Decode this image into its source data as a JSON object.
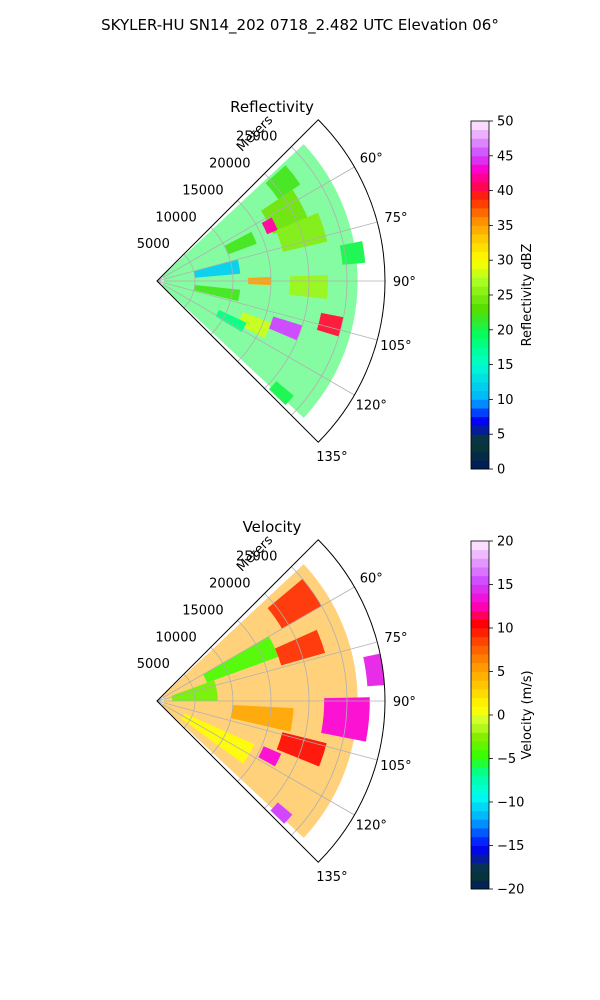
{
  "title": "SKYLER-HU  SN14_202  0718_2.482 UTC Elevation 06°",
  "chart_data": [
    {
      "type": "heatmap",
      "projection": "polar-sector",
      "title": "Reflectivity",
      "radial_axis_label": "Meters",
      "radial_ticks": [
        5000,
        10000,
        15000,
        20000,
        25000
      ],
      "radial_range": [
        0,
        30000
      ],
      "azimuth_range_deg": [
        45,
        135
      ],
      "azimuth_ticks_deg": [
        60,
        75,
        90,
        105,
        120,
        135
      ],
      "azimuth_tick_labels": [
        "60°",
        "75°",
        "90°",
        "105°",
        "120°",
        "135°"
      ],
      "grid": true,
      "colorbar": {
        "label": "Reflectivity dBZ",
        "range": [
          0,
          50
        ],
        "ticks": [
          0,
          5,
          10,
          15,
          20,
          25,
          30,
          35,
          40,
          45,
          50
        ],
        "tick_labels": [
          "0",
          "5",
          "10",
          "15",
          "20",
          "25",
          "30",
          "35",
          "40",
          "45",
          "50"
        ]
      },
      "background_value": 20,
      "cells": [
        {
          "az": 52,
          "r": 21000,
          "dr": 3500,
          "daz": 8,
          "v": 22
        },
        {
          "az": 62,
          "r": 19000,
          "dr": 5000,
          "daz": 12,
          "v": 24
        },
        {
          "az": 64,
          "r": 16500,
          "dr": 1500,
          "daz": 6,
          "v": 42
        },
        {
          "az": 66,
          "r": 12000,
          "dr": 4000,
          "daz": 7,
          "v": 22
        },
        {
          "az": 72,
          "r": 20000,
          "dr": 6000,
          "daz": 10,
          "v": 25
        },
        {
          "az": 80,
          "r": 8000,
          "dr": 6000,
          "daz": 10,
          "v": 12
        },
        {
          "az": 82,
          "r": 26000,
          "dr": 3000,
          "daz": 6,
          "v": 20
        },
        {
          "az": 90,
          "r": 13500,
          "dr": 3000,
          "daz": 4,
          "v": 35
        },
        {
          "az": 92,
          "r": 20000,
          "dr": 5000,
          "daz": 8,
          "v": 26
        },
        {
          "az": 100,
          "r": 8000,
          "dr": 6000,
          "daz": 8,
          "v": 22
        },
        {
          "az": 104,
          "r": 23500,
          "dr": 3000,
          "daz": 6,
          "v": 40
        },
        {
          "az": 110,
          "r": 18000,
          "dr": 4000,
          "daz": 6,
          "v": 45
        },
        {
          "az": 114,
          "r": 14000,
          "dr": 4000,
          "daz": 8,
          "v": 28
        },
        {
          "az": 118,
          "r": 11000,
          "dr": 4000,
          "daz": 6,
          "v": 18
        },
        {
          "az": 132,
          "r": 22000,
          "dr": 3000,
          "daz": 4,
          "v": 20
        }
      ]
    },
    {
      "type": "heatmap",
      "projection": "polar-sector",
      "title": "Velocity",
      "radial_axis_label": "Meters",
      "radial_ticks": [
        5000,
        10000,
        15000,
        20000,
        25000
      ],
      "radial_range": [
        0,
        30000
      ],
      "azimuth_range_deg": [
        45,
        135
      ],
      "azimuth_ticks_deg": [
        60,
        75,
        90,
        105,
        120,
        135
      ],
      "azimuth_tick_labels": [
        "60°",
        "75°",
        "90°",
        "105°",
        "120°",
        "135°"
      ],
      "grid": true,
      "colorbar": {
        "label": "Velocity (m/s)",
        "range": [
          -20,
          20
        ],
        "ticks": [
          -20,
          -15,
          -10,
          -5,
          0,
          5,
          10,
          15,
          20
        ],
        "tick_labels": [
          "−20",
          "−15",
          "−10",
          "−5",
          "0",
          "5",
          "10",
          "15",
          "20"
        ]
      },
      "background_value": 5,
      "cells": [
        {
          "az": 55,
          "r": 22000,
          "dr": 6000,
          "daz": 10,
          "v": 9
        },
        {
          "az": 65,
          "r": 12000,
          "dr": 10000,
          "daz": 10,
          "v": -4
        },
        {
          "az": 70,
          "r": 20000,
          "dr": 6000,
          "daz": 8,
          "v": 9
        },
        {
          "az": 80,
          "r": 5000,
          "dr": 6000,
          "daz": 20,
          "v": -3
        },
        {
          "az": 82,
          "r": 29000,
          "dr": 2500,
          "daz": 8,
          "v": 14
        },
        {
          "az": 95,
          "r": 25000,
          "dr": 6000,
          "daz": 12,
          "v": 13
        },
        {
          "az": 98,
          "r": 14000,
          "dr": 8000,
          "daz": 10,
          "v": 5
        },
        {
          "az": 108,
          "r": 20000,
          "dr": 6000,
          "daz": 8,
          "v": 10
        },
        {
          "az": 116,
          "r": 16500,
          "dr": 2500,
          "daz": 6,
          "v": 13
        },
        {
          "az": 120,
          "r": 9000,
          "dr": 10000,
          "daz": 12,
          "v": 1
        },
        {
          "az": 132,
          "r": 22000,
          "dr": 2500,
          "daz": 4,
          "v": 15
        }
      ]
    }
  ]
}
